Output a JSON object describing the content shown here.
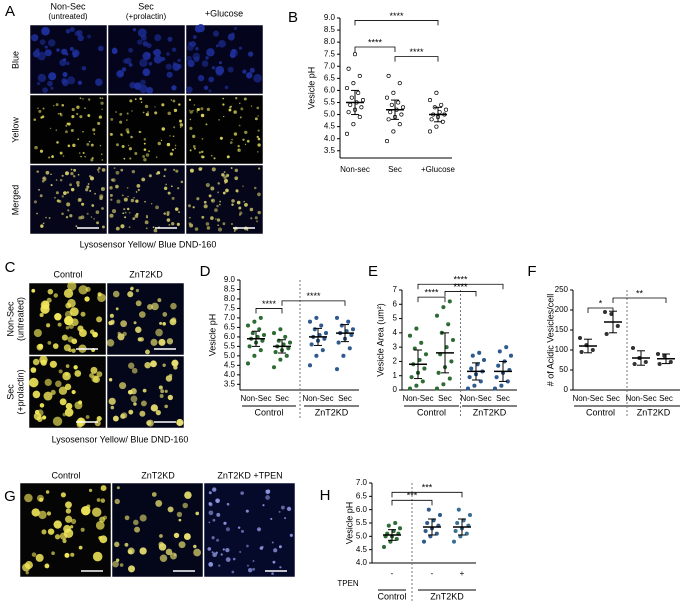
{
  "panel_a": {
    "letter": "A",
    "columns": [
      {
        "title": "Non-Sec",
        "subtitle": "(untreated)"
      },
      {
        "title": "Sec",
        "subtitle": "(+prolactin)"
      },
      {
        "title": "+Glucose"
      }
    ],
    "rows": [
      "Blue",
      "Yellow",
      "Merged"
    ],
    "caption": "Lysosensor Yellow/ Blue DND-160"
  },
  "panel_c": {
    "letter": "C",
    "columns": [
      "Control",
      "ZnT2KD"
    ],
    "rows": [
      {
        "title": "Non-Sec",
        "subtitle": "(untreated)"
      },
      {
        "title": "Sec",
        "subtitle": "(+prolactin)"
      }
    ],
    "caption": "Lysosensor Yellow/ Blue DND-160"
  },
  "panel_g": {
    "letter": "G",
    "columns": [
      "Control",
      "ZnT2KD",
      "ZnT2KD +TPEN"
    ]
  },
  "chart_data": [
    {
      "type": "dotplot",
      "letter": "B",
      "y_label": "Vesicle pH",
      "marker": "open",
      "ylim": [
        3.2,
        9.0
      ],
      "yticks": [
        3.5,
        {
          "value": 4,
          "label": "4.0"
        },
        4.5,
        {
          "value": 5,
          "label": "5.0"
        },
        5.5,
        {
          "value": 6,
          "label": "6.0"
        },
        6.5,
        {
          "value": 7,
          "label": "7.0"
        },
        7.5,
        {
          "value": 8,
          "label": "8.0"
        },
        8.5,
        {
          "value": 9,
          "label": "9.0"
        }
      ],
      "categories": [
        "Non-sec",
        "Sec",
        "+Glucose"
      ],
      "groups": [
        {
          "color": "#000000",
          "values": [
            4.2,
            4.6,
            4.9,
            5.1,
            5.2,
            5.3,
            5.4,
            5.5,
            5.6,
            5.7,
            5.9,
            6.1,
            6.3,
            6.6,
            6.9,
            7.5
          ],
          "mean": 5.5,
          "sd": 0.5
        },
        {
          "color": "#000000",
          "values": [
            3.9,
            4.3,
            4.6,
            4.8,
            4.9,
            5.0,
            5.1,
            5.2,
            5.3,
            5.4,
            5.5,
            5.7,
            5.9,
            6.3,
            6.6
          ],
          "mean": 5.2,
          "sd": 0.4
        },
        {
          "color": "#000000",
          "values": [
            4.3,
            4.5,
            4.7,
            4.8,
            4.9,
            5.0,
            5.0,
            5.1,
            5.2,
            5.3,
            5.4,
            5.6,
            5.9
          ],
          "mean": 5.0,
          "sd": 0.3
        }
      ],
      "brackets": [
        {
          "from": 0,
          "to": 1,
          "y": 7.8,
          "label": "****"
        },
        {
          "from": 1,
          "to": 2,
          "y": 7.4,
          "label": "****"
        },
        {
          "from": 0,
          "to": 2,
          "y": 8.9,
          "label": "****"
        }
      ]
    },
    {
      "type": "dotplot",
      "letter": "D",
      "y_label": "Vesicle pH",
      "marker": "filled",
      "ylim": [
        3.2,
        9.0
      ],
      "yticks": [
        3.5,
        {
          "value": 4,
          "label": "4.0"
        },
        4.5,
        {
          "value": 5,
          "label": "5.0"
        },
        5.5,
        {
          "value": 6,
          "label": "6.0"
        },
        6.5,
        {
          "value": 7,
          "label": "7.0"
        },
        7.5,
        {
          "value": 8,
          "label": "8.0"
        },
        8.5,
        {
          "value": 9,
          "label": "9.0"
        }
      ],
      "categories": [
        "Non-Sec",
        "Sec",
        "Non-Sec",
        "Sec"
      ],
      "group_labels": [
        {
          "label": "Control",
          "span": [
            0,
            1
          ]
        },
        {
          "label": "ZnT2KD",
          "span": [
            2,
            3
          ]
        }
      ],
      "groups": [
        {
          "color": "#2e6b35",
          "values": [
            4.6,
            5.0,
            5.3,
            5.5,
            5.7,
            5.8,
            5.9,
            6.0,
            6.1,
            6.2,
            6.4,
            6.6,
            6.8,
            7.0
          ],
          "mean": 5.9,
          "sd": 0.4
        },
        {
          "color": "#2e6b35",
          "values": [
            4.4,
            4.8,
            5.0,
            5.2,
            5.3,
            5.4,
            5.5,
            5.6,
            5.7,
            5.8,
            6.0,
            6.2,
            6.4
          ],
          "mean": 5.5,
          "sd": 0.35
        },
        {
          "color": "#2f5a8c",
          "values": [
            4.5,
            5.0,
            5.3,
            5.6,
            5.8,
            5.9,
            6.0,
            6.1,
            6.2,
            6.4,
            6.6,
            6.8,
            7.0
          ],
          "mean": 6.0,
          "sd": 0.45
        },
        {
          "color": "#2f5a8c",
          "values": [
            4.3,
            5.0,
            5.4,
            5.7,
            5.9,
            6.1,
            6.2,
            6.3,
            6.4,
            6.6,
            6.8,
            7.0
          ],
          "mean": 6.2,
          "sd": 0.45
        }
      ],
      "brackets": [
        {
          "from": 0,
          "to": 1,
          "y": 7.5,
          "label": "****"
        },
        {
          "from": 1,
          "to": 3,
          "y": 7.9,
          "label": "****"
        }
      ]
    },
    {
      "type": "dotplot",
      "letter": "E",
      "y_label": "Vesicle Area (um²)",
      "marker": "filled",
      "ylim": [
        0,
        7
      ],
      "yticks": [
        0,
        1,
        2,
        3,
        4,
        5,
        6,
        7
      ],
      "categories": [
        "Non-Sec",
        "Sec",
        "Non-Sec",
        "Sec"
      ],
      "group_labels": [
        {
          "label": "Control",
          "span": [
            0,
            1
          ]
        },
        {
          "label": "ZnT2KD",
          "span": [
            2,
            3
          ]
        }
      ],
      "groups": [
        {
          "color": "#2e6b35",
          "values": [
            0.1,
            0.3,
            0.6,
            0.9,
            1.2,
            1.5,
            1.8,
            2.1,
            2.5,
            2.9,
            3.3,
            3.8,
            4.3
          ],
          "mean": 1.8,
          "sd": 1.0
        },
        {
          "color": "#2e6b35",
          "values": [
            0.1,
            0.4,
            0.8,
            1.2,
            1.6,
            2.0,
            2.5,
            3.0,
            3.5,
            4.0,
            4.6,
            5.2,
            5.8,
            6.2
          ],
          "mean": 2.6,
          "sd": 1.4
        },
        {
          "color": "#2f5a8c",
          "values": [
            0.1,
            0.3,
            0.6,
            0.9,
            1.1,
            1.3,
            1.5,
            1.8,
            2.1,
            2.4,
            2.6
          ],
          "mean": 1.3,
          "sd": 0.6
        },
        {
          "color": "#2f5a8c",
          "values": [
            0.1,
            0.3,
            0.6,
            0.9,
            1.2,
            1.4,
            1.7,
            2.0,
            2.4,
            2.7,
            3.0
          ],
          "mean": 1.3,
          "sd": 0.7
        }
      ],
      "brackets": [
        {
          "from": 0,
          "to": 1,
          "y": 6.5,
          "label": "****"
        },
        {
          "from": 1,
          "to": 2,
          "y": 6.9,
          "label": "****"
        },
        {
          "from": 0,
          "to": 3,
          "y": 7.4,
          "label": "****"
        }
      ]
    },
    {
      "type": "dotplot",
      "letter": "F",
      "y_label": "# of Acidic Vesicles/cell",
      "marker": "filled",
      "ylim": [
        0,
        250
      ],
      "yticks": [
        0,
        50,
        100,
        150,
        200,
        250
      ],
      "categories": [
        "Non-Sec",
        "Sec",
        "Non-Sec",
        "Sec"
      ],
      "group_labels": [
        {
          "label": "Control",
          "span": [
            0,
            1
          ]
        },
        {
          "label": "ZnT2KD",
          "span": [
            2,
            3
          ]
        }
      ],
      "groups": [
        {
          "color": "#333333",
          "values": [
            130,
            112,
            100,
            95
          ],
          "mean": 110,
          "sd": 17
        },
        {
          "color": "#333333",
          "values": [
            195,
            190,
            160,
            140
          ],
          "mean": 170,
          "sd": 27
        },
        {
          "color": "#333333",
          "values": [
            105,
            80,
            70,
            65
          ],
          "mean": 80,
          "sd": 18
        },
        {
          "color": "#333333",
          "values": [
            90,
            85,
            70,
            65
          ],
          "mean": 78,
          "sd": 12
        }
      ],
      "brackets": [
        {
          "from": 0,
          "to": 1,
          "y": 205,
          "label": "*"
        },
        {
          "from": 1,
          "to": 3,
          "y": 230,
          "label": "**"
        }
      ]
    },
    {
      "type": "dotplot",
      "letter": "H",
      "y_label": "Vesicle pH",
      "marker": "filled",
      "row_label": "TPEN",
      "ylim": [
        4,
        7
      ],
      "yticks": [
        {
          "value": 4,
          "label": "4.0"
        },
        4.5,
        {
          "value": 5,
          "label": "5.0"
        },
        5.5,
        {
          "value": 6,
          "label": "6.0"
        },
        6.5,
        {
          "value": 7,
          "label": "7.0"
        }
      ],
      "categories": [
        "-",
        "-",
        "+"
      ],
      "group_labels": [
        {
          "label": "Control",
          "span": [
            0,
            0
          ]
        },
        {
          "label": "ZnT2KD",
          "span": [
            1,
            2
          ]
        }
      ],
      "groups": [
        {
          "color": "#2e6b35",
          "values": [
            4.6,
            4.8,
            4.9,
            5.0,
            5.0,
            5.1,
            5.1,
            5.2,
            5.3,
            5.4,
            5.5
          ],
          "mean": 5.05,
          "sd": 0.2
        },
        {
          "color": "#2f5a8c",
          "values": [
            4.8,
            5.0,
            5.1,
            5.2,
            5.3,
            5.4,
            5.5,
            5.6,
            5.8,
            6.0
          ],
          "mean": 5.35,
          "sd": 0.3
        },
        {
          "color": "#3a6f96",
          "values": [
            4.8,
            5.0,
            5.1,
            5.2,
            5.3,
            5.4,
            5.5,
            5.6,
            5.8,
            6.0
          ],
          "mean": 5.35,
          "sd": 0.3
        }
      ],
      "brackets": [
        {
          "from": 0,
          "to": 1,
          "y": 6.35,
          "label": "***"
        },
        {
          "from": 0,
          "to": 2,
          "y": 6.65,
          "label": "***"
        }
      ]
    }
  ]
}
